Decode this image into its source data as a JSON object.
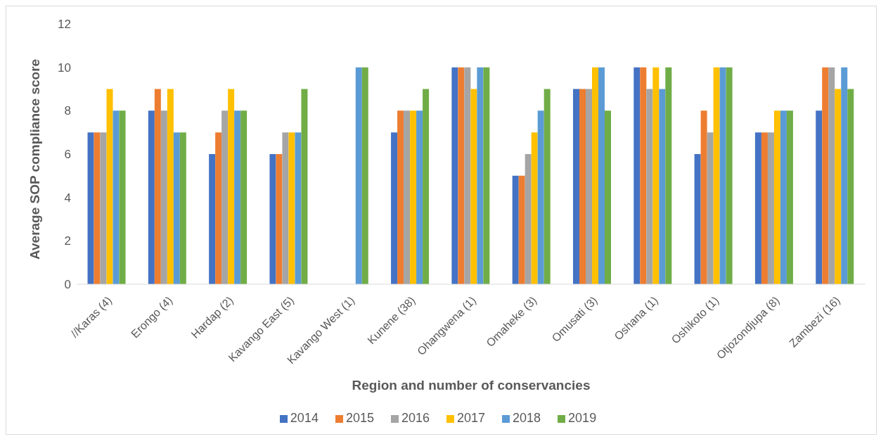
{
  "chart_data": {
    "type": "bar",
    "xlabel": "Region and number of conservancies",
    "ylabel": "Average SOP compliance score",
    "categories": [
      "//Karas (4)",
      "Erongo (4)",
      "Hardap (2)",
      "Kavango East (5)",
      "Kavango West (1)",
      "Kunene (38)",
      "Ohangwena (1)",
      "Omaheke (3)",
      "Omusati (3)",
      "Oshana (1)",
      "Oshikoto (1)",
      "Otjozondjupa (8)",
      "Zambezi (16)"
    ],
    "series": [
      {
        "name": "2014",
        "color": "#4472c4",
        "values": [
          7,
          8,
          6,
          6,
          null,
          7,
          10,
          5,
          9,
          10,
          6,
          7,
          8
        ]
      },
      {
        "name": "2015",
        "color": "#ed7d31",
        "values": [
          7,
          9,
          7,
          6,
          null,
          8,
          10,
          5,
          9,
          10,
          8,
          7,
          10
        ]
      },
      {
        "name": "2016",
        "color": "#a5a5a5",
        "values": [
          7,
          8,
          8,
          7,
          null,
          8,
          10,
          6,
          9,
          9,
          7,
          7,
          10
        ]
      },
      {
        "name": "2017",
        "color": "#ffc000",
        "values": [
          9,
          9,
          9,
          7,
          null,
          8,
          9,
          7,
          10,
          10,
          10,
          8,
          9
        ]
      },
      {
        "name": "2018",
        "color": "#5b9bd5",
        "values": [
          8,
          7,
          8,
          7,
          10,
          8,
          10,
          8,
          10,
          9,
          10,
          8,
          10
        ]
      },
      {
        "name": "2019",
        "color": "#70ad47",
        "values": [
          8,
          7,
          8,
          9,
          10,
          9,
          10,
          9,
          8,
          10,
          10,
          8,
          9
        ]
      }
    ],
    "ylim": [
      0,
      12
    ],
    "yticks": [
      0,
      2,
      4,
      6,
      8,
      10,
      12
    ],
    "grid": false,
    "legend": "bottom"
  }
}
